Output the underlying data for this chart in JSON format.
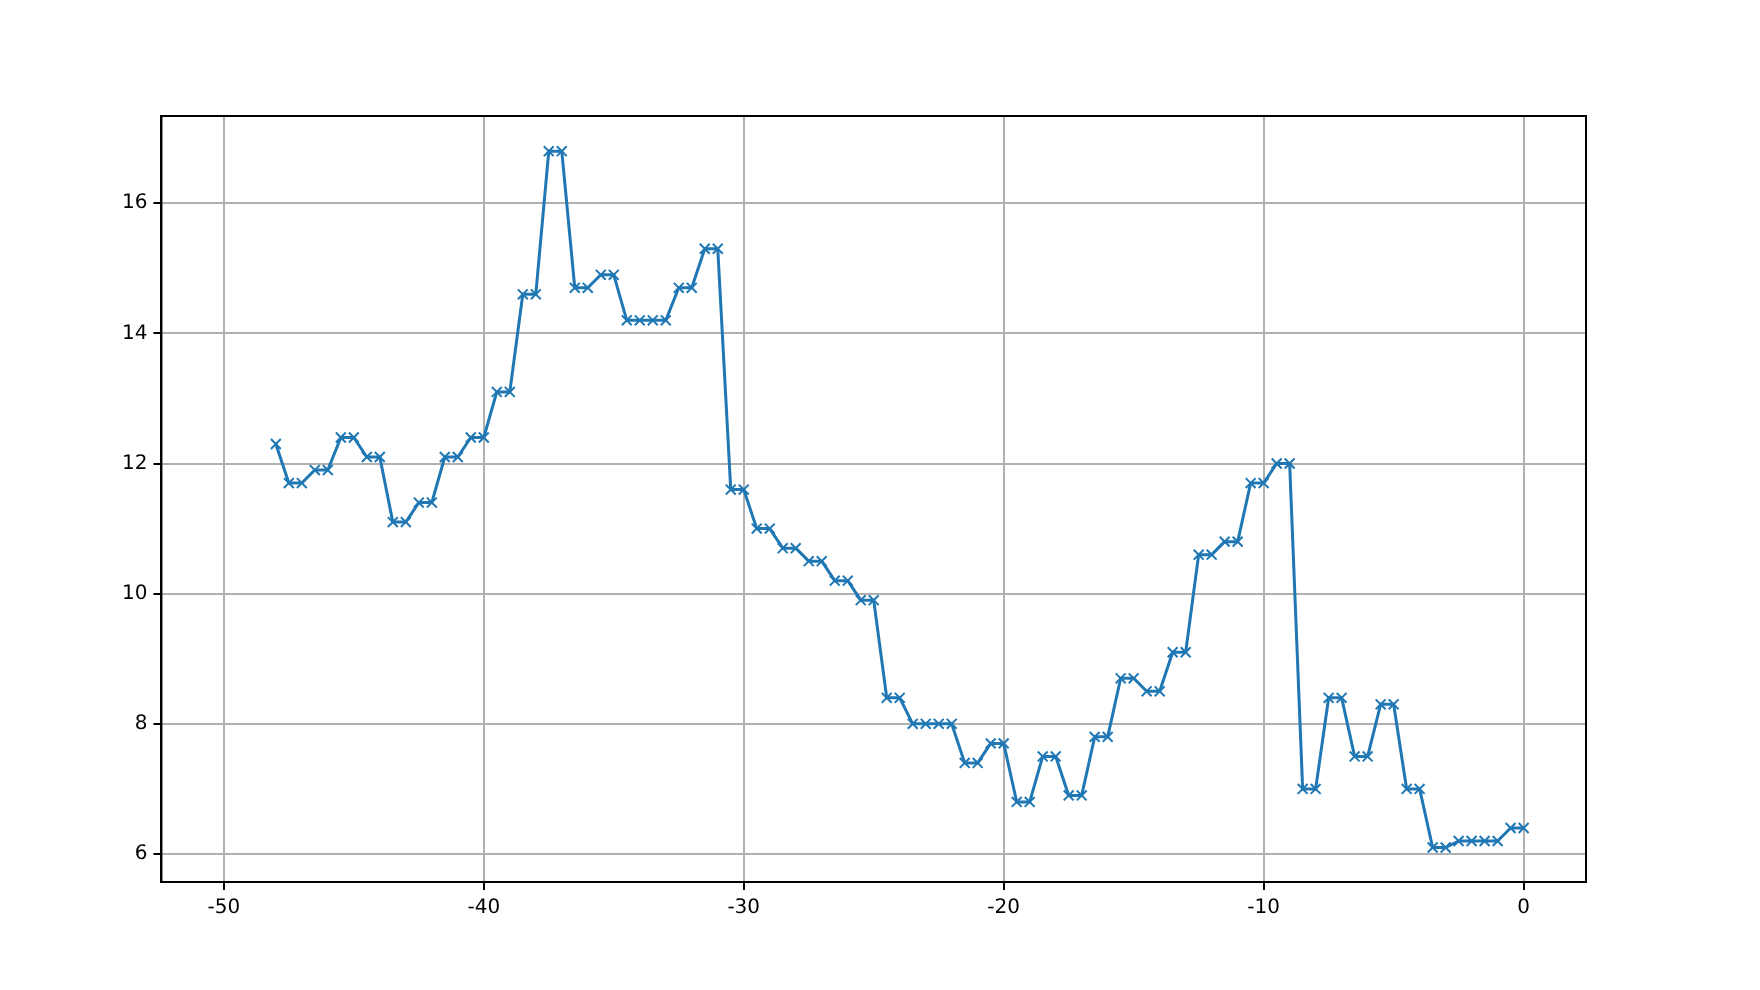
{
  "chart_data": {
    "type": "line",
    "marker": "cross",
    "grid": true,
    "xlim": [
      -52.4,
      2.4
    ],
    "ylim": [
      5.57,
      17.34
    ],
    "xticks": [
      -50,
      -40,
      -30,
      -20,
      -10,
      0
    ],
    "yticks": [
      6,
      8,
      10,
      12,
      14,
      16
    ],
    "x": [
      -48,
      -47.5,
      -47,
      -46.5,
      -46,
      -45.5,
      -45,
      -44.5,
      -44,
      -43.5,
      -43,
      -42.5,
      -42,
      -41.5,
      -41,
      -40.5,
      -40,
      -39.5,
      -39,
      -38.5,
      -38,
      -37.5,
      -37,
      -36.5,
      -36,
      -35.5,
      -35,
      -34.5,
      -34,
      -33.5,
      -33,
      -32.5,
      -32,
      -31.5,
      -31,
      -30.5,
      -30,
      -29.5,
      -29,
      -28.5,
      -28,
      -27.5,
      -27,
      -26.5,
      -26,
      -25.5,
      -25,
      -24.5,
      -24,
      -23.5,
      -23,
      -22.5,
      -22,
      -21.5,
      -21,
      -20.5,
      -20,
      -19.5,
      -19,
      -18.5,
      -18,
      -17.5,
      -17,
      -16.5,
      -16,
      -15.5,
      -15,
      -14.5,
      -14,
      -13.5,
      -13,
      -12.5,
      -12,
      -11.5,
      -11,
      -10.5,
      -10,
      -9.5,
      -9,
      -8.5,
      -8,
      -7.5,
      -7,
      -6.5,
      -6,
      -5.5,
      -5,
      -4.5,
      -4,
      -3.5,
      -3,
      -2.5,
      -2,
      -1.5,
      -1,
      -0.5,
      0
    ],
    "series": [
      {
        "color": "#1f77b4",
        "values": [
          12.3,
          11.7,
          11.7,
          11.9,
          11.9,
          12.4,
          12.4,
          12.1,
          12.1,
          11.1,
          11.1,
          11.4,
          11.4,
          12.1,
          12.1,
          12.4,
          12.4,
          13.1,
          13.1,
          14.6,
          14.6,
          16.8,
          16.8,
          14.7,
          14.7,
          14.9,
          14.9,
          14.2,
          14.2,
          14.2,
          14.2,
          14.7,
          14.7,
          15.3,
          15.3,
          11.6,
          11.6,
          11.0,
          11.0,
          10.7,
          10.7,
          10.5,
          10.5,
          10.2,
          10.2,
          9.9,
          9.9,
          8.4,
          8.4,
          8.0,
          8.0,
          8.0,
          8.0,
          7.4,
          7.4,
          7.7,
          7.7,
          6.8,
          6.8,
          7.5,
          7.5,
          6.9,
          6.9,
          7.8,
          7.8,
          8.7,
          8.7,
          8.5,
          8.5,
          9.1,
          9.1,
          10.6,
          10.6,
          10.8,
          10.8,
          11.7,
          11.7,
          12.0,
          12.0,
          7.0,
          7.0,
          8.4,
          8.4,
          7.5,
          7.5,
          8.3,
          8.3,
          7.0,
          7.0,
          6.1,
          6.1,
          6.2,
          6.2,
          6.2,
          6.2,
          6.4,
          6.4
        ]
      }
    ]
  }
}
